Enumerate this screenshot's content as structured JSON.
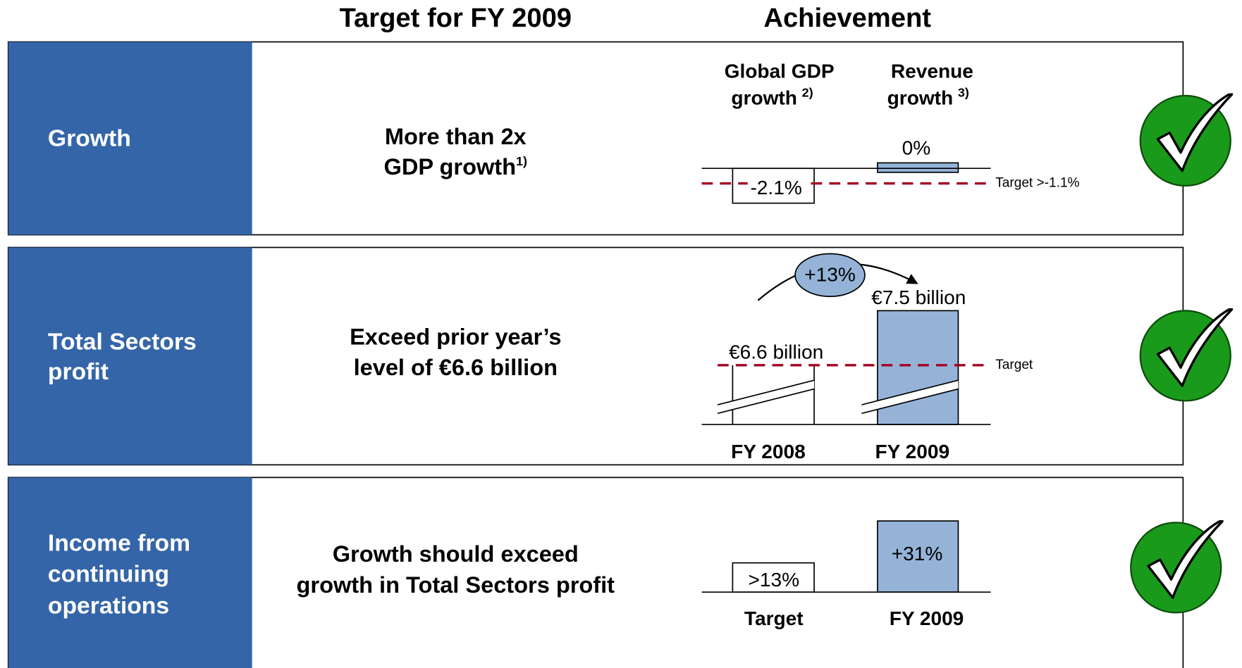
{
  "header": {
    "target_heading": "Target for FY 2009",
    "achievement_heading": "Achievement"
  },
  "rows": [
    {
      "label": [
        "Growth"
      ],
      "target": [
        "More than 2x",
        "GDP growth"
      ],
      "target_note": "1)",
      "chart": {
        "headings": [
          [
            "Global GDP",
            "growth"
          ],
          [
            "Revenue",
            "growth"
          ]
        ],
        "notes": [
          "2)",
          "3)"
        ],
        "value_labels": [
          "-2.1%",
          "0%"
        ],
        "target_label": "Target >-1.1%"
      }
    },
    {
      "label": [
        "Total Sectors",
        "profit"
      ],
      "target": [
        "Exceed prior year’s",
        "level of €6.6 billion"
      ],
      "chart": {
        "categories": [
          "FY 2008",
          "FY 2009"
        ],
        "value_labels": [
          "€6.6 billion",
          "€7.5 billion"
        ],
        "change": "+13%",
        "target_label": "Target"
      }
    },
    {
      "label": [
        "Income from",
        "continuing",
        "operations"
      ],
      "target": [
        "Growth should exceed",
        "growth in Total Sectors profit"
      ],
      "chart": {
        "categories": [
          "Target",
          "FY 2009"
        ],
        "value_labels": [
          ">13%",
          "+31%"
        ]
      }
    }
  ]
}
